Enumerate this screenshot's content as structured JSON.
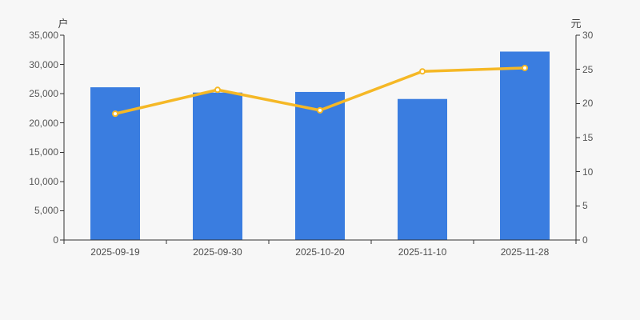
{
  "chart_style": {
    "background": "#f7f7f7",
    "bar_color": "#3a7de0",
    "line_color": "#f5b826",
    "marker_fill": "#ffffff",
    "axis_color": "#333333",
    "tick_text_color": "#555555",
    "category_text_color": "#4c4c4c"
  },
  "chart_data": {
    "type": "bar",
    "title": "",
    "legend": false,
    "grid": false,
    "categories": [
      "2025-09-19",
      "2025-09-30",
      "2025-10-20",
      "2025-11-10",
      "2025-11-28"
    ],
    "series": [
      {
        "type": "bar",
        "axis": "left",
        "values": [
          26100,
          25200,
          25300,
          24100,
          32200
        ]
      },
      {
        "type": "line",
        "axis": "right",
        "values": [
          18.5,
          22.0,
          19.0,
          24.7,
          25.2
        ]
      }
    ],
    "left_axis": {
      "label": "户",
      "min": 0,
      "max": 35000,
      "tick_step": 5000,
      "tick_labels": [
        "0",
        "5,000",
        "10,000",
        "15,000",
        "20,000",
        "25,000",
        "30,000",
        "35,000"
      ]
    },
    "right_axis": {
      "label": "元",
      "min": 0,
      "max": 30,
      "tick_step": 5,
      "tick_labels": [
        "0",
        "5",
        "10",
        "15",
        "20",
        "25",
        "30"
      ]
    }
  }
}
